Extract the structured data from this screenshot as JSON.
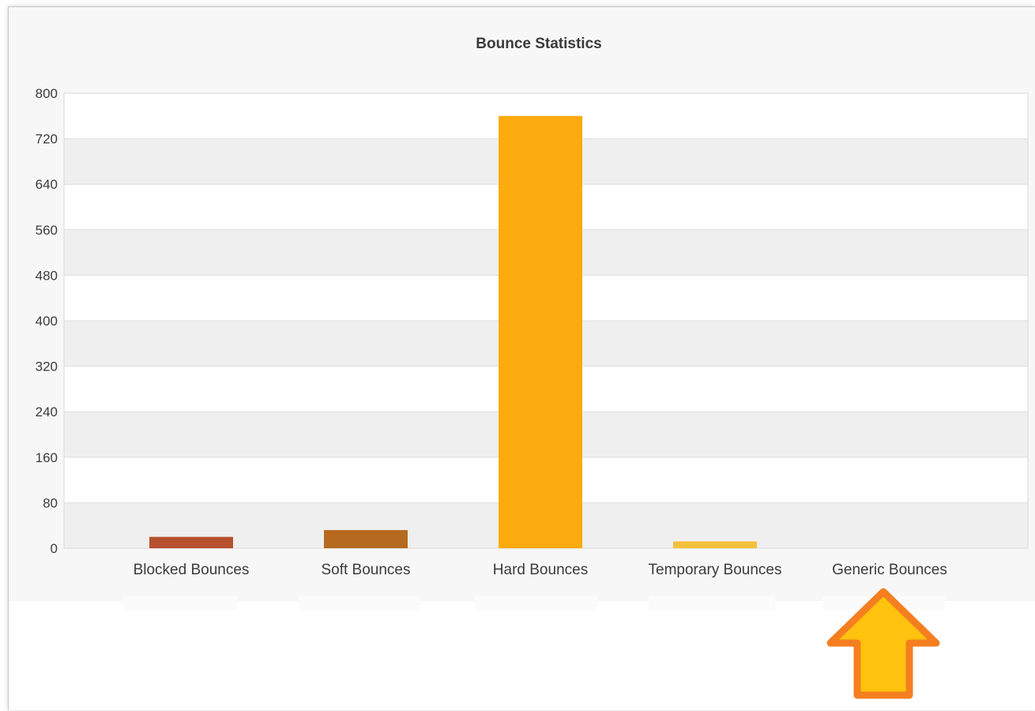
{
  "chart_data": {
    "type": "bar",
    "title": "Bounce Statistics",
    "xlabel": "",
    "ylabel": "",
    "ylim": [
      0,
      800
    ],
    "yticks": [
      0,
      80,
      160,
      240,
      320,
      400,
      480,
      560,
      640,
      720,
      800
    ],
    "categories": [
      "Blocked Bounces",
      "Soft Bounces",
      "Hard Bounces",
      "Temporary Bounces",
      "Generic Bounces"
    ],
    "values": [
      20,
      32,
      760,
      12,
      0
    ],
    "colors": [
      "#b5512e",
      "#b56a1f",
      "#fbab0e",
      "#f5c03a",
      "#f5c03a"
    ],
    "grid": true,
    "legend": "none"
  },
  "annotation": {
    "name": "up-arrow-icon",
    "fill": "#ffc20e",
    "stroke": "#f57f20"
  }
}
